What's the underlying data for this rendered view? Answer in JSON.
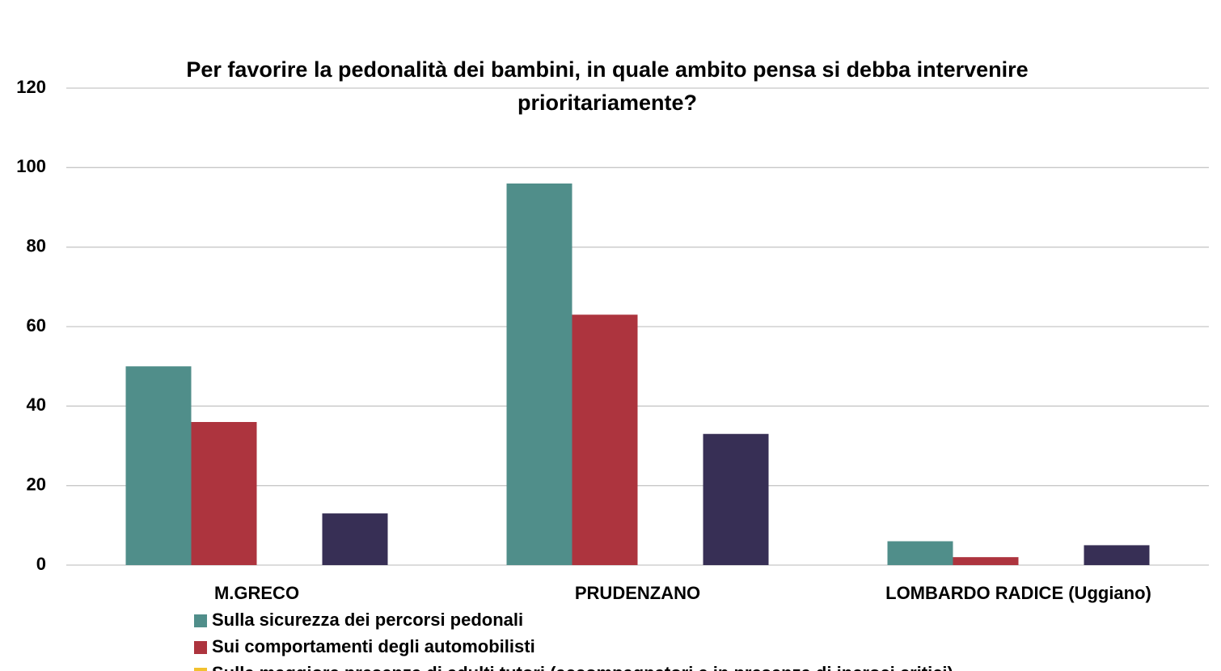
{
  "chart_data": {
    "type": "bar",
    "title": "Per favorire la pedonalità dei bambini, in quale ambito pensa si debba intervenire prioritariamente?",
    "categories": [
      "M.GRECO",
      "PRUDENZANO",
      "LOMBARDO RADICE (Uggiano)"
    ],
    "series": [
      {
        "name": "Sulla sicurezza dei percorsi pedonali",
        "color": "#508e8a",
        "values": [
          50,
          96,
          6
        ]
      },
      {
        "name": "Sui comportamenti degli automobilisti",
        "color": "#ad343e",
        "values": [
          36,
          63,
          2
        ]
      },
      {
        "name": "Sulla maggiore presenza di adulti tutori (accompagnatori e in presenza di incroci critici)",
        "color": "#f2c12e",
        "values": [
          0,
          0,
          0
        ]
      },
      {
        "color": "#372f55",
        "values": [
          13,
          33,
          5
        ]
      }
    ],
    "ylim": [
      0,
      120
    ],
    "yticks": [
      0,
      20,
      40,
      60,
      80,
      100,
      120
    ],
    "grid": true
  }
}
